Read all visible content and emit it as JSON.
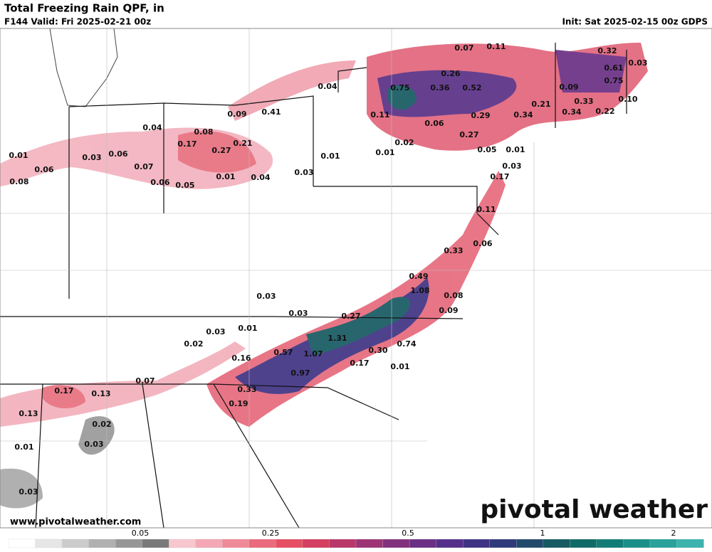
{
  "header": {
    "title": "Total Freezing Rain QPF, in",
    "valid": "F144 Valid: Fri 2025-02-21 00z",
    "init": "Init: Sat 2025-02-15 00z GDPS"
  },
  "map_labels": [
    "0.07",
    "0.11",
    "0.32",
    "0.61",
    "0.03",
    "0.26",
    "0.75",
    "0.36",
    "0.52",
    "0.09",
    "0.75",
    "0.04",
    "0.10",
    "0.33",
    "0.21",
    "0.34",
    "0.34",
    "0.22",
    "0.09",
    "0.41",
    "0.11",
    "0.29",
    "0.06",
    "0.27",
    "0.04",
    "0.08",
    "0.02",
    "0.21",
    "0.17",
    "0.05",
    "0.01",
    "0.27",
    "0.06",
    "0.03",
    "0.01",
    "0.01",
    "0.01",
    "0.03",
    "0.07",
    "0.06",
    "0.03",
    "0.01",
    "0.04",
    "0.17",
    "0.08",
    "0.06",
    "0.05",
    "0.11",
    "0.06",
    "0.33",
    "0.49",
    "1.08",
    "0.03",
    "0.08",
    "0.09",
    "0.03",
    "0.27",
    "0.01",
    "0.03",
    "1.31",
    "0.74",
    "0.02",
    "0.57",
    "0.30",
    "1.07",
    "0.16",
    "0.17",
    "0.01",
    "0.97",
    "0.07",
    "0.33",
    "0.17",
    "0.13",
    "0.19",
    "0.13",
    "0.02",
    "0.03",
    "0.01",
    "0.03"
  ],
  "website": "www.pivotalweather.com",
  "logo": "pivotal weather",
  "legend": {
    "ticks": [
      "0.05",
      "0.25",
      "0.5",
      "1",
      "2"
    ],
    "colors": [
      "#ffffff",
      "#e6e6e6",
      "#cccccc",
      "#b0b0b0",
      "#969696",
      "#7a7a7a",
      "#f7c6cf",
      "#f4a7b4",
      "#ef8a99",
      "#ea6b7d",
      "#e64f63",
      "#d23f60",
      "#b9386a",
      "#9d3474",
      "#82317d",
      "#6b2f85",
      "#55308a",
      "#3f3384",
      "#2f3a7a",
      "#214a6c",
      "#165a62",
      "#0f6b66",
      "#127d76",
      "#1b8f87",
      "#2aa19a",
      "#3cb3ad"
    ]
  }
}
